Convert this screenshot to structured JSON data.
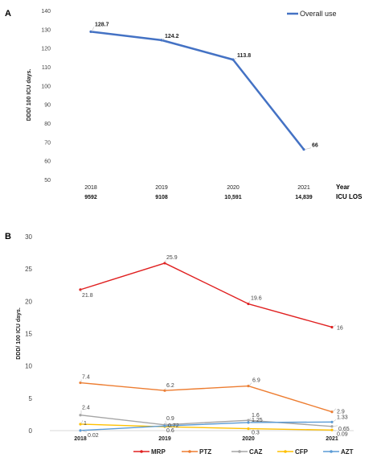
{
  "chart_data": [
    {
      "type": "line",
      "panel_label": "A",
      "ylabel": "DDD/ 100 ICU days.",
      "ylim": [
        50,
        140
      ],
      "yticks": [
        50,
        60,
        70,
        80,
        90,
        100,
        110,
        120,
        130,
        140
      ],
      "categories": [
        "2018",
        "2019",
        "2020",
        "2021"
      ],
      "xlabel": "Year",
      "secondary_row_label": "ICU LOS",
      "secondary_row": [
        "9592",
        "9108",
        "10,591",
        "14,839"
      ],
      "legend_position": "top-right",
      "grid": false,
      "series": [
        {
          "name": "Overall use",
          "color": "#4472C4",
          "values": [
            128.7,
            124.2,
            113.8,
            66
          ],
          "labels": [
            "128.7",
            "124.2",
            "113.8",
            "66"
          ]
        }
      ]
    },
    {
      "type": "line",
      "panel_label": "B",
      "ylabel": "DDD/ 100 ICU days.",
      "ylim": [
        0,
        30
      ],
      "yticks": [
        0,
        5,
        10,
        15,
        20,
        25,
        30
      ],
      "categories": [
        "2018",
        "2019",
        "2020",
        "2021"
      ],
      "legend_position": "bottom",
      "grid": false,
      "series": [
        {
          "name": "MRP",
          "color": "#E02020",
          "values": [
            21.8,
            25.9,
            19.6,
            16
          ],
          "labels": [
            "21.8",
            "25.9",
            "19.6",
            "16"
          ]
        },
        {
          "name": "PTZ",
          "color": "#ED7D31",
          "values": [
            7.4,
            6.2,
            6.9,
            2.9
          ],
          "labels": [
            "7.4",
            "6.2",
            "6.9",
            "2.9"
          ]
        },
        {
          "name": "CAZ",
          "color": "#A5A5A5",
          "values": [
            2.4,
            0.9,
            1.6,
            0.65
          ],
          "labels": [
            "2.4",
            "0.9",
            "1.6",
            "0.65"
          ]
        },
        {
          "name": "CFP",
          "color": "#FFC000",
          "values": [
            1,
            0.6,
            0.3,
            0.09
          ],
          "labels": [
            "1",
            "0.6",
            "0.3",
            "0.09"
          ]
        },
        {
          "name": "AZT",
          "color": "#5B9BD5",
          "values": [
            0.02,
            0.72,
            1.25,
            1.33
          ],
          "labels": [
            "0.02",
            "0.72",
            "1.25",
            "1.33"
          ]
        }
      ]
    }
  ]
}
